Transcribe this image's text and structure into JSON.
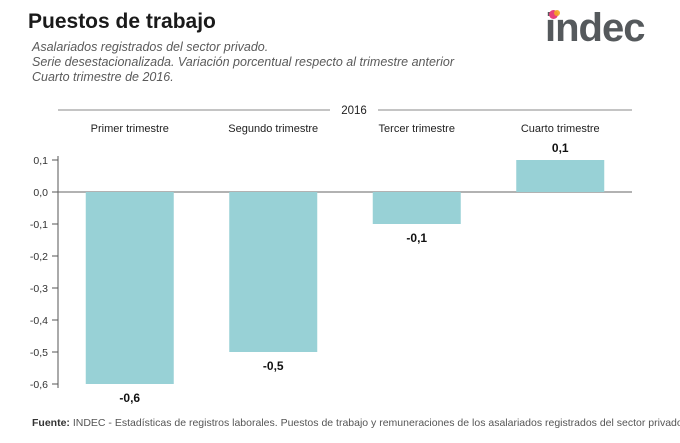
{
  "header": {
    "title": "Puestos de trabajo",
    "subtitle_lines": [
      "Asalariados registrados del sector privado.",
      "Serie desestacionalizada. Variación porcentual respecto al trimestre anterior",
      "Cuarto trimestre de 2016."
    ]
  },
  "logo": {
    "text": "indec",
    "dot_colors": [
      "#e7417a",
      "#f4a623"
    ]
  },
  "footer": {
    "label": "Fuente:",
    "text": " INDEC - Estadísticas de registros laborales. Puestos de trabajo y remuneraciones de los asalariados registrados del sector privado."
  },
  "colors": {
    "bar": "#98d1d6",
    "axis": "#555555",
    "grid": "#999999"
  },
  "chart_data": {
    "type": "bar",
    "title": "",
    "group_label": "2016",
    "categories": [
      "Primer trimestre",
      "Segundo trimestre",
      "Tercer trimestre",
      "Cuarto trimestre"
    ],
    "values": [
      -0.6,
      -0.5,
      -0.1,
      0.1
    ],
    "value_labels": [
      "-0,6",
      "-0,5",
      "-0,1",
      "0,1"
    ],
    "ylim": [
      -0.6,
      0.1
    ],
    "yticks": [
      0.1,
      0.0,
      -0.1,
      -0.2,
      -0.3,
      -0.4,
      -0.5,
      -0.6
    ],
    "ytick_labels": [
      "0,1",
      "0,0",
      "-0,1",
      "-0,2",
      "-0,3",
      "-0,4",
      "-0,5",
      "-0,6"
    ],
    "xlabel": "",
    "ylabel": ""
  }
}
